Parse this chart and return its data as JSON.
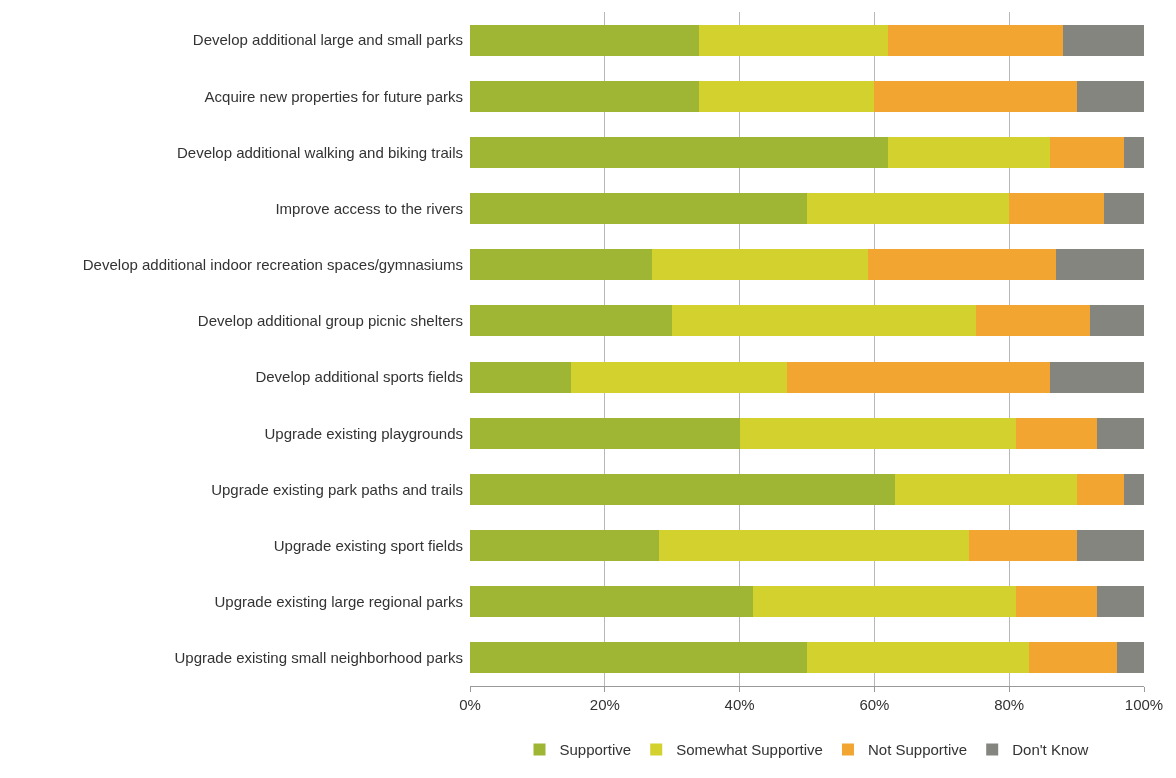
{
  "chart_data": {
    "type": "bar",
    "orientation": "horizontal",
    "stacked": true,
    "categories": [
      "Develop additional large and small parks",
      "Acquire new properties for future parks",
      "Develop additional walking and biking trails",
      "Improve access to the rivers",
      "Develop additional indoor recreation spaces/gymnasiums",
      "Develop additional group picnic shelters",
      "Develop additional sports fields",
      "Upgrade existing playgrounds",
      "Upgrade existing park paths and trails",
      "Upgrade existing sport fields",
      "Upgrade existing large regional parks",
      "Upgrade existing small neighborhood parks"
    ],
    "series": [
      {
        "name": "Supportive",
        "color": "#9fb534",
        "values": [
          34,
          34,
          62,
          50,
          27,
          30,
          15,
          40,
          63,
          28,
          42,
          50
        ]
      },
      {
        "name": "Somewhat Supportive",
        "color": "#d2d12e",
        "values": [
          28,
          26,
          24,
          30,
          32,
          45,
          32,
          41,
          27,
          46,
          39,
          33
        ]
      },
      {
        "name": "Not Supportive",
        "color": "#f2a531",
        "values": [
          26,
          30,
          11,
          14,
          28,
          17,
          39,
          12,
          7,
          16,
          12,
          13
        ]
      },
      {
        "name": "Don't Know",
        "color": "#858580",
        "values": [
          12,
          10,
          3,
          6,
          13,
          8,
          14,
          7,
          3,
          10,
          7,
          4
        ]
      }
    ],
    "xlim": [
      0,
      100
    ],
    "xticks": [
      {
        "value": 0,
        "label": "0%"
      },
      {
        "value": 20,
        "label": "20%"
      },
      {
        "value": 40,
        "label": "40%"
      },
      {
        "value": 60,
        "label": "60%"
      },
      {
        "value": 80,
        "label": "80%"
      },
      {
        "value": 100,
        "label": "100%"
      }
    ],
    "grid": "x",
    "legend": "bottom"
  }
}
